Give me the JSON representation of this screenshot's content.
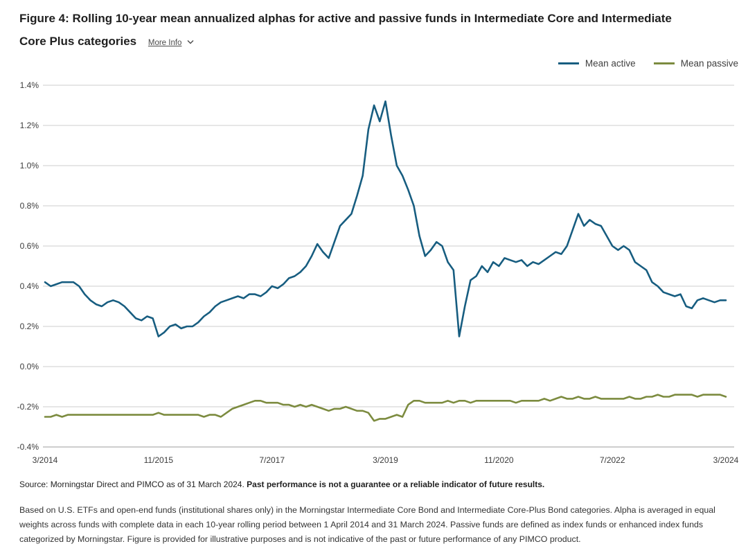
{
  "header": {
    "title": "Figure 4: Rolling 10-year mean annualized alphas for active and passive funds in Intermediate Core and Intermediate Core Plus categories",
    "more_info_label": "More Info"
  },
  "footer": {
    "source_text": "Source: Morningstar Direct and PIMCO as of 31 March 2024.",
    "source_disclaimer": "Past performance is not a guarantee or a reliable indicator of future results.",
    "footnote": "Based on U.S. ETFs and open-end funds (institutional shares only) in the Morningstar Intermediate Core Bond and Intermediate Core-Plus Bond categories. Alpha is averaged in equal weights across funds with complete data in each 10-year rolling period between 1 April 2014 and 31 March 2024. Passive funds are defined as index funds or enhanced index funds categorized by Morningstar. Figure is provided for illustrative purposes and is not indicative of the past or future performance of any PIMCO product."
  },
  "chart_data": {
    "type": "line",
    "title": "Rolling 10-year mean annualized alphas for active and passive funds",
    "x_unit": "month",
    "x_start_label": "3/2014",
    "x_end_label": "3/2024",
    "x_tick_labels": [
      "3/2014",
      "11/2015",
      "7/2017",
      "3/2019",
      "11/2020",
      "7/2022",
      "3/2024"
    ],
    "x_tick_month_index": [
      0,
      20,
      40,
      60,
      80,
      100,
      120
    ],
    "y_ticks": [
      1.4,
      1.2,
      1.0,
      0.8,
      0.6,
      0.4,
      0.2,
      0.0,
      -0.2,
      -0.4
    ],
    "y_tick_format": "percent",
    "ylim": [
      -0.4,
      1.4
    ],
    "xlabel": "",
    "ylabel": "",
    "grid": "horizontal",
    "legend_position": "top-right",
    "series": [
      {
        "name": "Mean active",
        "color": "#175d80",
        "values": [
          0.42,
          0.4,
          0.41,
          0.42,
          0.42,
          0.42,
          0.4,
          0.36,
          0.33,
          0.31,
          0.3,
          0.32,
          0.33,
          0.32,
          0.3,
          0.27,
          0.24,
          0.23,
          0.25,
          0.24,
          0.15,
          0.17,
          0.2,
          0.21,
          0.19,
          0.2,
          0.2,
          0.22,
          0.25,
          0.27,
          0.3,
          0.32,
          0.33,
          0.34,
          0.35,
          0.34,
          0.36,
          0.36,
          0.35,
          0.37,
          0.4,
          0.39,
          0.41,
          0.44,
          0.45,
          0.47,
          0.5,
          0.55,
          0.61,
          0.57,
          0.54,
          0.62,
          0.7,
          0.73,
          0.76,
          0.85,
          0.95,
          1.18,
          1.3,
          1.22,
          1.32,
          1.15,
          1.0,
          0.95,
          0.88,
          0.8,
          0.65,
          0.55,
          0.58,
          0.62,
          0.6,
          0.52,
          0.48,
          0.15,
          0.3,
          0.43,
          0.45,
          0.5,
          0.47,
          0.52,
          0.5,
          0.54,
          0.53,
          0.52,
          0.53,
          0.5,
          0.52,
          0.51,
          0.53,
          0.55,
          0.57,
          0.56,
          0.6,
          0.68,
          0.76,
          0.7,
          0.73,
          0.71,
          0.7,
          0.65,
          0.6,
          0.58,
          0.6,
          0.58,
          0.52,
          0.5,
          0.48,
          0.42,
          0.4,
          0.37,
          0.36,
          0.35,
          0.36,
          0.3,
          0.29,
          0.33,
          0.34,
          0.33,
          0.32,
          0.33,
          0.33
        ]
      },
      {
        "name": "Mean passive",
        "color": "#7c8b3f",
        "values": [
          -0.25,
          -0.25,
          -0.24,
          -0.25,
          -0.24,
          -0.24,
          -0.24,
          -0.24,
          -0.24,
          -0.24,
          -0.24,
          -0.24,
          -0.24,
          -0.24,
          -0.24,
          -0.24,
          -0.24,
          -0.24,
          -0.24,
          -0.24,
          -0.23,
          -0.24,
          -0.24,
          -0.24,
          -0.24,
          -0.24,
          -0.24,
          -0.24,
          -0.25,
          -0.24,
          -0.24,
          -0.25,
          -0.23,
          -0.21,
          -0.2,
          -0.19,
          -0.18,
          -0.17,
          -0.17,
          -0.18,
          -0.18,
          -0.18,
          -0.19,
          -0.19,
          -0.2,
          -0.19,
          -0.2,
          -0.19,
          -0.2,
          -0.21,
          -0.22,
          -0.21,
          -0.21,
          -0.2,
          -0.21,
          -0.22,
          -0.22,
          -0.23,
          -0.27,
          -0.26,
          -0.26,
          -0.25,
          -0.24,
          -0.25,
          -0.19,
          -0.17,
          -0.17,
          -0.18,
          -0.18,
          -0.18,
          -0.18,
          -0.17,
          -0.18,
          -0.17,
          -0.17,
          -0.18,
          -0.17,
          -0.17,
          -0.17,
          -0.17,
          -0.17,
          -0.17,
          -0.17,
          -0.18,
          -0.17,
          -0.17,
          -0.17,
          -0.17,
          -0.16,
          -0.17,
          -0.16,
          -0.15,
          -0.16,
          -0.16,
          -0.15,
          -0.16,
          -0.16,
          -0.15,
          -0.16,
          -0.16,
          -0.16,
          -0.16,
          -0.16,
          -0.15,
          -0.16,
          -0.16,
          -0.15,
          -0.15,
          -0.14,
          -0.15,
          -0.15,
          -0.14,
          -0.14,
          -0.14,
          -0.14,
          -0.15,
          -0.14,
          -0.14,
          -0.14,
          -0.14,
          -0.15
        ]
      }
    ]
  }
}
